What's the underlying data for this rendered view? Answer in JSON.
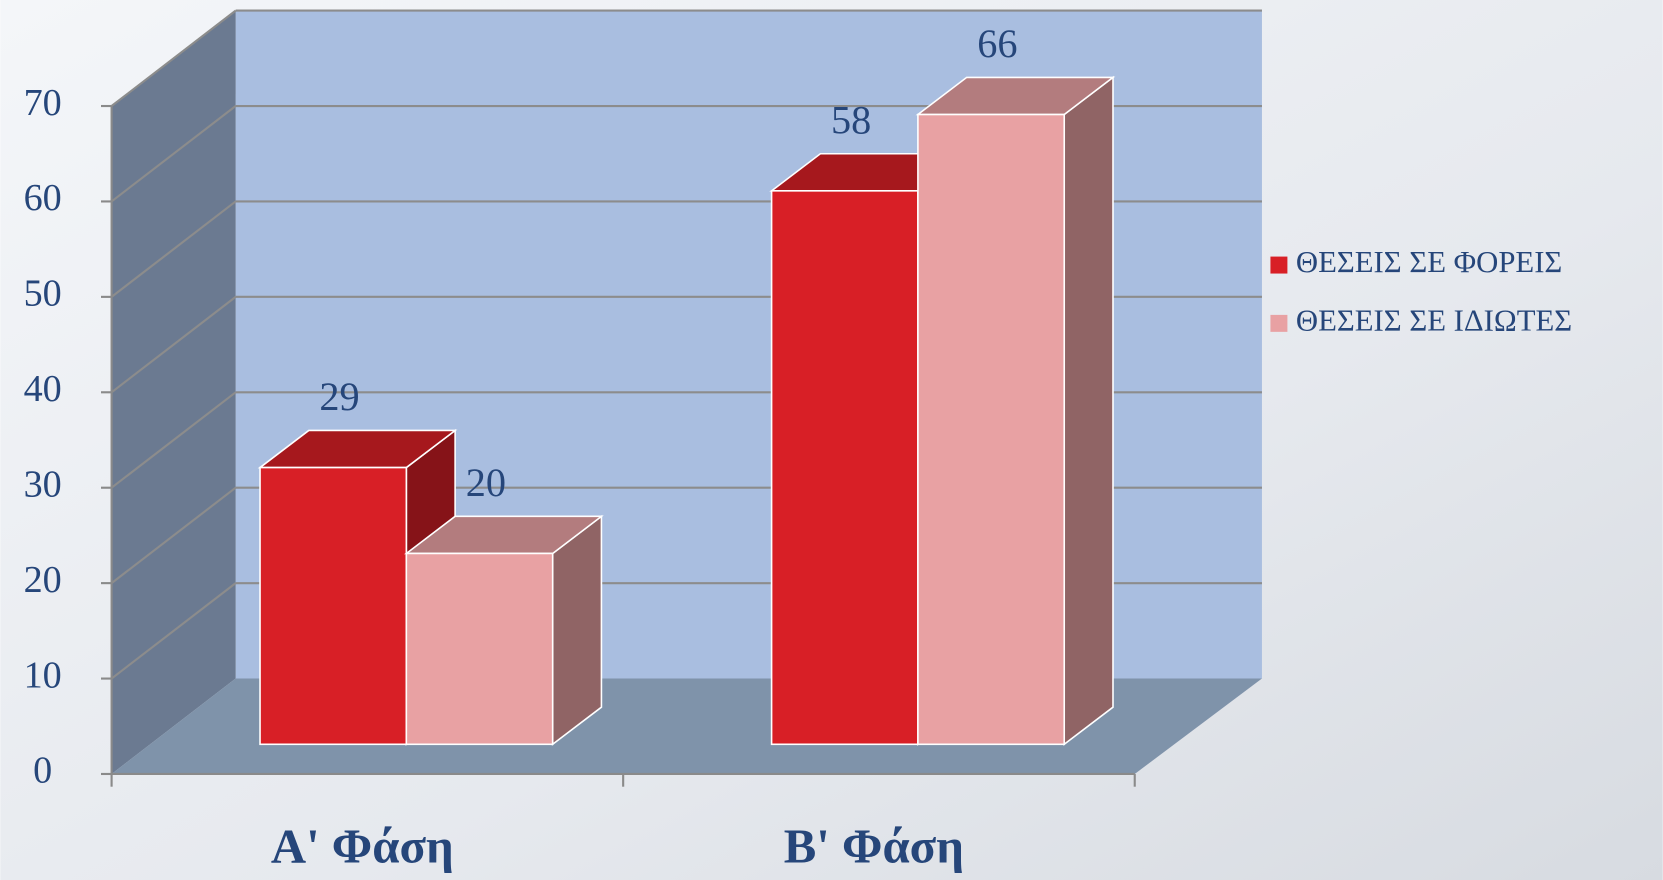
{
  "chart_data": {
    "type": "bar3d",
    "categories": [
      "Α' Φάση",
      "Β' Φάση"
    ],
    "series": [
      {
        "name": "ΘΕΣΕΙΣ ΣΕ ΦΟΡΕΙΣ",
        "color": "#d81f26",
        "values": [
          29,
          58
        ]
      },
      {
        "name": "ΘΕΣΕΙΣ ΣΕ ΙΔΙΩΤΕΣ",
        "color": "#e8a1a3",
        "values": [
          20,
          66
        ]
      }
    ],
    "ylim": [
      0,
      70
    ],
    "yticks": [
      0,
      10,
      20,
      30,
      40,
      50,
      60,
      70
    ],
    "grid": true,
    "legend": "right"
  }
}
